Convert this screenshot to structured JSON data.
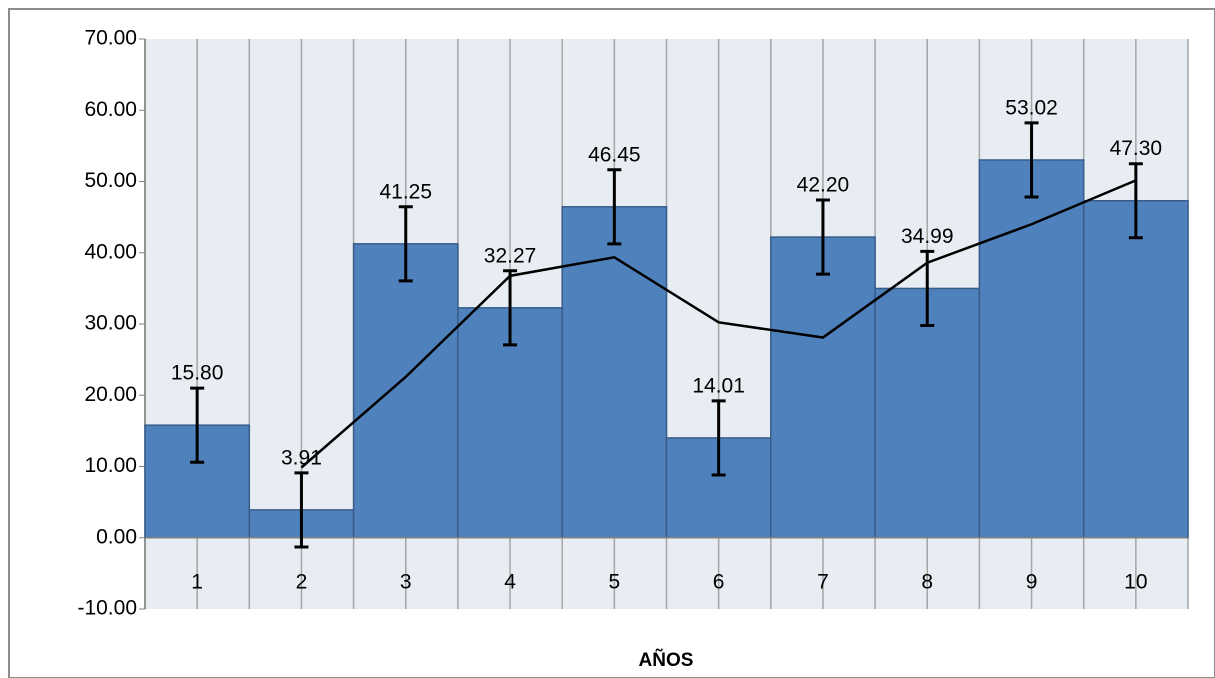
{
  "chart_data": {
    "type": "bar",
    "x_label": "AÑOS",
    "categories": [
      "1",
      "2",
      "3",
      "4",
      "5",
      "6",
      "7",
      "8",
      "9",
      "10"
    ],
    "values": [
      15.8,
      3.91,
      41.25,
      32.27,
      46.45,
      14.01,
      42.2,
      34.99,
      53.02,
      47.3
    ],
    "value_labels": [
      "15.80",
      "3.91",
      "41.25",
      "32.27",
      "46.45",
      "14.01",
      "42.20",
      "34.99",
      "53.02",
      "47.30"
    ],
    "errors": [
      5.2,
      5.2,
      5.2,
      5.2,
      5.2,
      5.2,
      5.2,
      5.2,
      5.2,
      5.2
    ],
    "line_values": [
      null,
      9.86,
      22.58,
      36.76,
      39.36,
      30.23,
      28.1,
      38.6,
      44.0,
      50.16
    ],
    "color": "#4f81bd",
    "line_color": "#000000",
    "ylim": [
      -10,
      70
    ],
    "yticks": [
      {
        "value": -10,
        "label": "-10.00"
      },
      {
        "value": 0,
        "label": "0.00"
      },
      {
        "value": 10,
        "label": "10.00"
      },
      {
        "value": 20,
        "label": "20.00"
      },
      {
        "value": 30,
        "label": "30.00"
      },
      {
        "value": 40,
        "label": "40.00"
      },
      {
        "value": 50,
        "label": "50.00"
      },
      {
        "value": 60,
        "label": "60.00"
      },
      {
        "value": 70,
        "label": "70.00"
      }
    ],
    "grid": true
  }
}
